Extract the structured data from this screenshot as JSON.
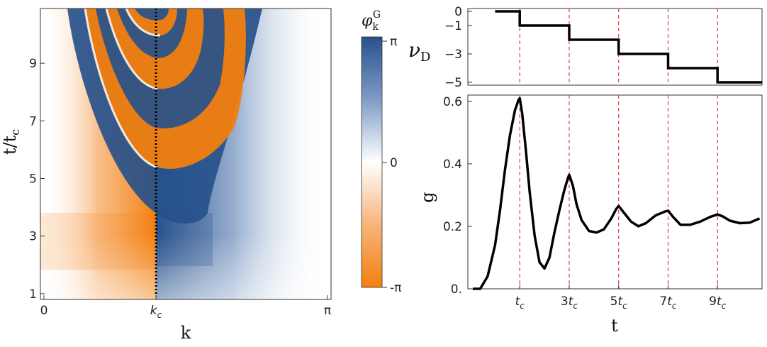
{
  "chart_data": [
    {
      "type": "heatmap",
      "title": "",
      "xlabel": "k",
      "ylabel": "t/t_c",
      "x_ticks": [
        "0",
        "k_c",
        "π"
      ],
      "y_ticks": [
        "1",
        "3",
        "5",
        "7",
        "9"
      ],
      "x_range": [
        0,
        3.1416
      ],
      "y_range": [
        0.8,
        10.9
      ],
      "k_c": 1.32,
      "dotted_line_at": "k_c",
      "colorbar": {
        "label": "φ_k^G",
        "ticks": [
          "π",
          "0",
          "-π"
        ],
        "range": [
          -3.1416,
          3.1416
        ],
        "colors": {
          "min": "#f2800f",
          "mid": "#ffffff",
          "max": "#27518b"
        }
      },
      "phase_jump_times": [
        2.8,
        4.8,
        6.8,
        8.8,
        10.6
      ],
      "description_note": ""
    },
    {
      "type": "line",
      "xlabel": "",
      "ylabel": "ν_D",
      "y_ticks": [
        "0",
        "-1",
        "-3",
        "-5"
      ],
      "ylim": [
        -5.2,
        0.2
      ],
      "series": [
        {
          "x": [
            0,
            1,
            1,
            3,
            3,
            5,
            5,
            7,
            7,
            9,
            9,
            10.8
          ],
          "y": [
            0,
            0,
            -1,
            -1,
            -2,
            -2,
            -3,
            -3,
            -4,
            -4,
            -5,
            -5
          ]
        }
      ],
      "vertical_markers": [
        1,
        3,
        5,
        7,
        9
      ],
      "marker_color": "#e53b3b",
      "line_color": "#000000"
    },
    {
      "type": "line",
      "xlabel": "t",
      "ylabel": "g",
      "x_ticks": [
        "t_c",
        "3t_c",
        "5t_c",
        "7t_c",
        "9t_c"
      ],
      "y_ticks": [
        "0.",
        "0.2",
        "0.4",
        "0.6"
      ],
      "xlim": [
        -1.1,
        10.8
      ],
      "ylim": [
        0,
        0.62
      ],
      "series": [
        {
          "x": [
            -0.9,
            -0.6,
            -0.3,
            0,
            0.2,
            0.4,
            0.6,
            0.8,
            0.95,
            1.0,
            1.1,
            1.25,
            1.4,
            1.6,
            1.8,
            2.0,
            2.2,
            2.4,
            2.6,
            2.8,
            2.95,
            3.0,
            3.15,
            3.3,
            3.5,
            3.8,
            4.1,
            4.4,
            4.7,
            4.9,
            5.0,
            5.2,
            5.5,
            5.8,
            6.1,
            6.5,
            6.9,
            7.0,
            7.2,
            7.5,
            7.9,
            8.3,
            8.7,
            9.0,
            9.2,
            9.5,
            9.9,
            10.3,
            10.7
          ],
          "y": [
            0.0,
            0.0,
            0.04,
            0.14,
            0.25,
            0.38,
            0.49,
            0.57,
            0.605,
            0.61,
            0.56,
            0.44,
            0.31,
            0.17,
            0.085,
            0.065,
            0.1,
            0.18,
            0.25,
            0.315,
            0.355,
            0.365,
            0.33,
            0.27,
            0.22,
            0.185,
            0.18,
            0.19,
            0.225,
            0.255,
            0.265,
            0.245,
            0.215,
            0.2,
            0.21,
            0.235,
            0.248,
            0.25,
            0.23,
            0.205,
            0.205,
            0.215,
            0.23,
            0.238,
            0.232,
            0.218,
            0.21,
            0.212,
            0.225
          ]
        }
      ],
      "vertical_markers": [
        1,
        3,
        5,
        7,
        9
      ],
      "marker_color": "#e53b3b",
      "line_color": "#000000"
    }
  ]
}
